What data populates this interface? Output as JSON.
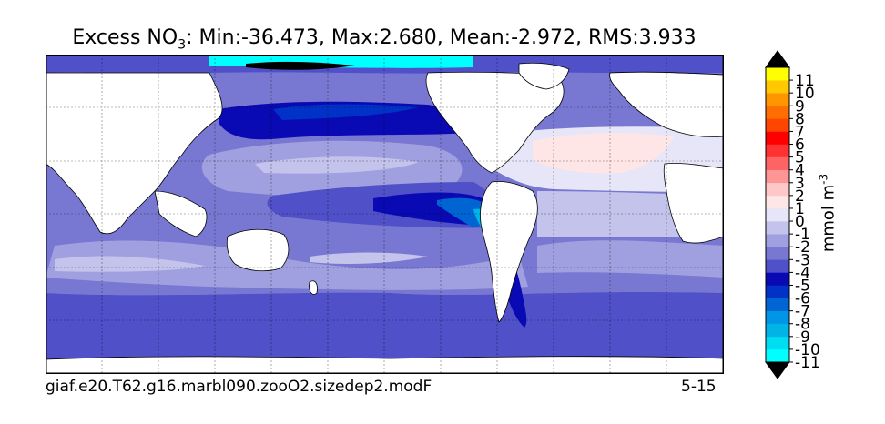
{
  "title": {
    "prefix": "Excess NO",
    "subscript": "3",
    "stats": ": Min:-36.473, Max:2.680, Mean:-2.972, RMS:3.933"
  },
  "footer": {
    "case_name": "giaf.e20.T62.g16.marbl090.zooO2.sizedep2.modF",
    "depth_range": "5-15"
  },
  "colorbar": {
    "label_text": "mmol m",
    "label_exponent": "-3",
    "ticks": [
      "-11",
      "-10",
      "-9",
      "-8",
      "-7",
      "-6",
      "-5",
      "-4",
      "-3",
      "-2",
      "-1",
      "0",
      "1",
      "2",
      "3",
      "4",
      "5",
      "6",
      "7",
      "8",
      "9",
      "10",
      "11"
    ],
    "colors_low_to_high": [
      "#00ffff",
      "#00dcf0",
      "#00b4e6",
      "#0096e6",
      "#0064d2",
      "#0032c8",
      "#0a0ab4",
      "#5050c8",
      "#7878d2",
      "#a0a0e0",
      "#c3c3ec",
      "#e6e6f8",
      "#ffe6e6",
      "#ffc8c8",
      "#ff9696",
      "#ff6464",
      "#ff3232",
      "#ff0000",
      "#ff4600",
      "#ff6e00",
      "#ff9600",
      "#ffc800",
      "#ffff00"
    ],
    "extend_low_color": "#000000",
    "extend_high_color": "#000000"
  },
  "map": {
    "projection": "global cylindrical, longitude 20E to 380E",
    "land_color": "#ffffff",
    "coastline_color": "#000000",
    "gridlines": "dashed"
  }
}
